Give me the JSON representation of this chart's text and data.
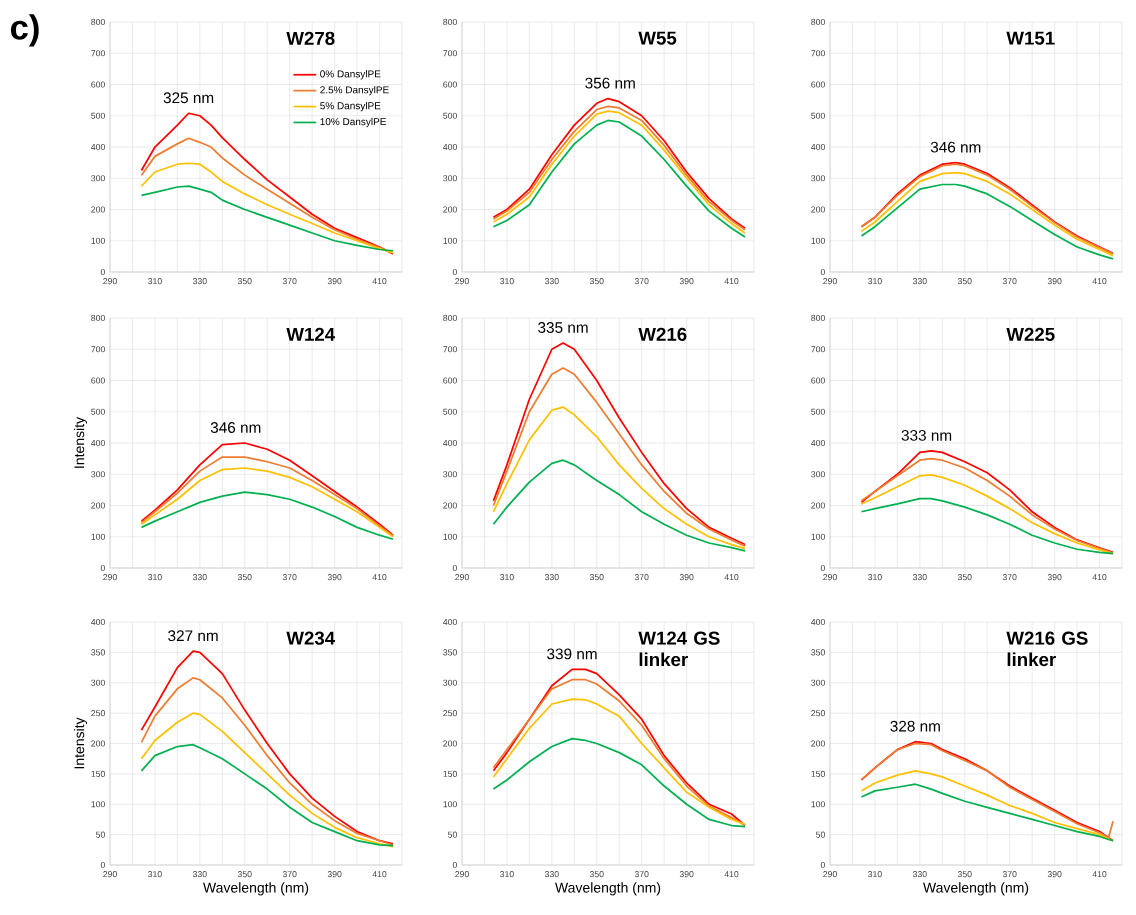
{
  "chart_data": [
    {
      "type": "line",
      "title": "W278",
      "annotations": [
        "c)",
        {
          "text": "325 nm",
          "x": 325,
          "y": 508
        }
      ],
      "legend": "top right",
      "grid": true,
      "xlim": [
        290,
        420
      ],
      "ylim": [
        0,
        800
      ],
      "xticks": [
        290,
        {
          "value": 300,
          "label": null
        },
        310,
        {
          "value": 320,
          "label": null
        },
        330,
        {
          "value": 340,
          "label": null
        },
        350,
        {
          "value": 360,
          "label": null
        },
        370,
        {
          "value": 380,
          "label": null
        },
        390,
        {
          "value": 400,
          "label": null
        },
        410,
        {
          "value": 420,
          "label": null
        }
      ],
      "yticks": [
        0,
        100,
        200,
        300,
        400,
        500,
        600,
        700,
        800
      ],
      "x": [
        304,
        310,
        320,
        325,
        330,
        335,
        340,
        350,
        360,
        370,
        380,
        390,
        400,
        410,
        416
      ],
      "series": [
        {
          "name": "0% DansylPE",
          "color": "#ff0000",
          "values": [
            325,
            400,
            470,
            508,
            500,
            470,
            430,
            360,
            295,
            240,
            185,
            140,
            110,
            80,
            58
          ]
        },
        {
          "name": "2.5% DansylPE",
          "color": "#ed7d31",
          "values": [
            310,
            370,
            410,
            428,
            415,
            400,
            365,
            310,
            265,
            220,
            175,
            135,
            105,
            78,
            60
          ]
        },
        {
          "name": "5% DansylPE",
          "color": "#ffc000",
          "values": [
            275,
            320,
            345,
            348,
            345,
            320,
            290,
            250,
            215,
            185,
            155,
            125,
            100,
            75,
            62
          ]
        },
        {
          "name": "10% DansylPE",
          "color": "#00b050",
          "values": [
            245,
            255,
            272,
            275,
            265,
            255,
            230,
            200,
            175,
            150,
            125,
            100,
            85,
            72,
            68
          ]
        }
      ]
    },
    {
      "type": "line",
      "title": "W55",
      "annotations": [
        {
          "text": "356 nm",
          "x": 356,
          "y": 555
        }
      ],
      "grid": true,
      "xlim": [
        290,
        420
      ],
      "ylim": [
        0,
        800
      ],
      "xticks": [
        290,
        {
          "value": 300,
          "label": null
        },
        310,
        {
          "value": 320,
          "label": null
        },
        330,
        {
          "value": 340,
          "label": null
        },
        350,
        {
          "value": 360,
          "label": null
        },
        370,
        {
          "value": 380,
          "label": null
        },
        390,
        {
          "value": 400,
          "label": null
        },
        410,
        {
          "value": 420,
          "label": null
        }
      ],
      "yticks": [
        0,
        100,
        200,
        300,
        400,
        500,
        600,
        700,
        800
      ],
      "x": [
        304,
        310,
        320,
        330,
        340,
        350,
        355,
        360,
        370,
        380,
        390,
        400,
        410,
        416
      ],
      "series": [
        {
          "color": "#ff0000",
          "values": [
            175,
            200,
            265,
            375,
            470,
            540,
            555,
            545,
            500,
            420,
            320,
            235,
            170,
            140
          ]
        },
        {
          "color": "#ed7d31",
          "values": [
            170,
            195,
            255,
            360,
            450,
            520,
            530,
            525,
            485,
            405,
            310,
            225,
            165,
            135
          ]
        },
        {
          "color": "#ffc000",
          "values": [
            160,
            185,
            240,
            345,
            435,
            505,
            515,
            510,
            470,
            390,
            300,
            215,
            155,
            125
          ]
        },
        {
          "color": "#00b050",
          "values": [
            145,
            165,
            215,
            320,
            410,
            470,
            485,
            480,
            435,
            360,
            275,
            195,
            140,
            112
          ]
        }
      ]
    },
    {
      "type": "line",
      "title": "W151",
      "annotations": [
        {
          "text": "346 nm",
          "x": 346,
          "y": 350
        }
      ],
      "grid": true,
      "xlim": [
        290,
        420
      ],
      "ylim": [
        0,
        800
      ],
      "xticks": [
        290,
        {
          "value": 300,
          "label": null
        },
        310,
        {
          "value": 320,
          "label": null
        },
        330,
        {
          "value": 340,
          "label": null
        },
        350,
        {
          "value": 360,
          "label": null
        },
        370,
        {
          "value": 380,
          "label": null
        },
        390,
        {
          "value": 400,
          "label": null
        },
        410,
        {
          "value": 420,
          "label": null
        }
      ],
      "yticks": [
        0,
        100,
        200,
        300,
        400,
        500,
        600,
        700,
        800
      ],
      "x": [
        304,
        310,
        320,
        330,
        340,
        346,
        350,
        360,
        370,
        380,
        390,
        400,
        410,
        416
      ],
      "series": [
        {
          "color": "#ff0000",
          "values": [
            145,
            175,
            250,
            310,
            345,
            350,
            345,
            315,
            270,
            215,
            160,
            115,
            80,
            60
          ]
        },
        {
          "color": "#ed7d31",
          "values": [
            145,
            175,
            245,
            305,
            340,
            345,
            340,
            310,
            265,
            210,
            158,
            112,
            78,
            58
          ]
        },
        {
          "color": "#ffc000",
          "values": [
            130,
            160,
            225,
            290,
            315,
            318,
            315,
            290,
            250,
            200,
            150,
            105,
            72,
            52
          ]
        },
        {
          "color": "#00b050",
          "values": [
            115,
            145,
            205,
            265,
            280,
            280,
            275,
            250,
            210,
            165,
            120,
            80,
            55,
            42
          ]
        }
      ]
    },
    {
      "type": "line",
      "title": "W124",
      "ylabel": "Intensity",
      "annotations": [
        {
          "text": "346 nm",
          "x": 346,
          "y": 400
        }
      ],
      "grid": true,
      "xlim": [
        290,
        420
      ],
      "ylim": [
        0,
        800
      ],
      "xticks": [
        290,
        {
          "value": 300,
          "label": null
        },
        310,
        {
          "value": 320,
          "label": null
        },
        330,
        {
          "value": 340,
          "label": null
        },
        350,
        {
          "value": 360,
          "label": null
        },
        370,
        {
          "value": 380,
          "label": null
        },
        390,
        {
          "value": 400,
          "label": null
        },
        410,
        {
          "value": 420,
          "label": null
        }
      ],
      "yticks": [
        0,
        100,
        200,
        300,
        400,
        500,
        600,
        700,
        800
      ],
      "x": [
        304,
        310,
        320,
        330,
        340,
        350,
        360,
        370,
        380,
        390,
        400,
        410,
        416
      ],
      "series": [
        {
          "color": "#ff0000",
          "values": [
            150,
            185,
            250,
            330,
            395,
            400,
            380,
            345,
            295,
            245,
            195,
            140,
            105
          ]
        },
        {
          "color": "#ed7d31",
          "values": [
            145,
            180,
            240,
            310,
            355,
            355,
            340,
            320,
            280,
            235,
            190,
            135,
            103
          ]
        },
        {
          "color": "#ffc000",
          "values": [
            140,
            170,
            220,
            280,
            315,
            320,
            310,
            290,
            260,
            220,
            180,
            130,
            100
          ]
        },
        {
          "color": "#00b050",
          "values": [
            130,
            150,
            180,
            210,
            230,
            243,
            235,
            220,
            195,
            165,
            130,
            105,
            92
          ]
        }
      ]
    },
    {
      "type": "line",
      "title": "W216",
      "annotations": [
        {
          "text": "335 nm",
          "x": 335,
          "y": 720
        }
      ],
      "grid": true,
      "xlim": [
        290,
        420
      ],
      "ylim": [
        0,
        800
      ],
      "xticks": [
        290,
        {
          "value": 300,
          "label": null
        },
        310,
        {
          "value": 320,
          "label": null
        },
        330,
        {
          "value": 340,
          "label": null
        },
        350,
        {
          "value": 360,
          "label": null
        },
        370,
        {
          "value": 380,
          "label": null
        },
        390,
        {
          "value": 400,
          "label": null
        },
        410,
        {
          "value": 420,
          "label": null
        }
      ],
      "yticks": [
        0,
        100,
        200,
        300,
        400,
        500,
        600,
        700,
        800
      ],
      "x": [
        304,
        310,
        320,
        330,
        335,
        340,
        350,
        360,
        370,
        380,
        390,
        400,
        410,
        416
      ],
      "series": [
        {
          "color": "#ff0000",
          "values": [
            215,
            330,
            540,
            700,
            720,
            700,
            600,
            480,
            370,
            270,
            190,
            130,
            95,
            75
          ]
        },
        {
          "color": "#ed7d31",
          "values": [
            200,
            310,
            500,
            620,
            640,
            620,
            530,
            430,
            330,
            245,
            175,
            125,
            90,
            70
          ]
        },
        {
          "color": "#ffc000",
          "values": [
            180,
            270,
            410,
            505,
            515,
            490,
            420,
            330,
            255,
            190,
            140,
            100,
            75,
            62
          ]
        },
        {
          "color": "#00b050",
          "values": [
            140,
            195,
            275,
            335,
            345,
            330,
            280,
            235,
            180,
            140,
            105,
            80,
            65,
            55
          ]
        }
      ]
    },
    {
      "type": "line",
      "title": "W225",
      "annotations": [
        {
          "text": "333 nm",
          "x": 333,
          "y": 375
        }
      ],
      "grid": true,
      "xlim": [
        290,
        420
      ],
      "ylim": [
        0,
        800
      ],
      "xticks": [
        290,
        {
          "value": 300,
          "label": null
        },
        310,
        {
          "value": 320,
          "label": null
        },
        330,
        {
          "value": 340,
          "label": null
        },
        350,
        {
          "value": 360,
          "label": null
        },
        370,
        {
          "value": 380,
          "label": null
        },
        390,
        {
          "value": 400,
          "label": null
        },
        410,
        {
          "value": 420,
          "label": null
        }
      ],
      "yticks": [
        0,
        100,
        200,
        300,
        400,
        500,
        600,
        700,
        800
      ],
      "x": [
        304,
        310,
        320,
        330,
        335,
        340,
        350,
        360,
        370,
        380,
        390,
        400,
        410,
        416
      ],
      "series": [
        {
          "color": "#ff0000",
          "values": [
            210,
            245,
            300,
            370,
            375,
            370,
            340,
            305,
            250,
            180,
            130,
            90,
            65,
            50
          ]
        },
        {
          "color": "#ed7d31",
          "values": [
            215,
            245,
            295,
            345,
            350,
            345,
            320,
            280,
            230,
            170,
            125,
            88,
            63,
            48
          ]
        },
        {
          "color": "#ffc000",
          "values": [
            205,
            225,
            260,
            295,
            298,
            290,
            265,
            230,
            190,
            145,
            110,
            80,
            58,
            46
          ]
        },
        {
          "color": "#00b050",
          "values": [
            180,
            190,
            205,
            222,
            222,
            215,
            195,
            170,
            140,
            105,
            80,
            60,
            50,
            46
          ]
        }
      ]
    },
    {
      "type": "line",
      "title": "W234",
      "xlabel": "Wavelength (nm)",
      "ylabel": "Intensity",
      "annotations": [
        {
          "text": "327 nm",
          "x": 327,
          "y": 352
        }
      ],
      "grid": true,
      "xlim": [
        290,
        420
      ],
      "ylim": [
        0,
        400
      ],
      "xticks": [
        290,
        {
          "value": 300,
          "label": null
        },
        310,
        {
          "value": 320,
          "label": null
        },
        330,
        {
          "value": 340,
          "label": null
        },
        350,
        {
          "value": 360,
          "label": null
        },
        370,
        {
          "value": 380,
          "label": null
        },
        390,
        {
          "value": 400,
          "label": null
        },
        410,
        {
          "value": 420,
          "label": null
        }
      ],
      "yticks": [
        0,
        50,
        100,
        150,
        200,
        250,
        300,
        350,
        400
      ],
      "x": [
        304,
        310,
        320,
        327,
        330,
        340,
        350,
        360,
        370,
        380,
        390,
        400,
        410,
        416
      ],
      "series": [
        {
          "color": "#ff0000",
          "values": [
            222,
            260,
            325,
            352,
            350,
            315,
            255,
            200,
            150,
            110,
            80,
            55,
            40,
            35
          ]
        },
        {
          "color": "#ed7d31",
          "values": [
            202,
            245,
            290,
            308,
            305,
            275,
            230,
            180,
            135,
            100,
            73,
            52,
            40,
            33
          ]
        },
        {
          "color": "#ffc000",
          "values": [
            175,
            205,
            235,
            250,
            248,
            220,
            185,
            150,
            115,
            85,
            62,
            45,
            35,
            30
          ]
        },
        {
          "color": "#00b050",
          "values": [
            155,
            180,
            195,
            198,
            193,
            175,
            150,
            125,
            95,
            70,
            55,
            40,
            33,
            32
          ]
        }
      ]
    },
    {
      "type": "line",
      "title": "W124 GS linker",
      "xlabel": "Wavelength (nm)",
      "annotations": [
        {
          "text": "339 nm",
          "x": 339,
          "y": 322
        }
      ],
      "grid": true,
      "xlim": [
        290,
        420
      ],
      "ylim": [
        0,
        400
      ],
      "xticks": [
        290,
        {
          "value": 300,
          "label": null
        },
        310,
        {
          "value": 320,
          "label": null
        },
        330,
        {
          "value": 340,
          "label": null
        },
        350,
        {
          "value": 360,
          "label": null
        },
        370,
        {
          "value": 380,
          "label": null
        },
        390,
        {
          "value": 400,
          "label": null
        },
        410,
        {
          "value": 420,
          "label": null
        }
      ],
      "yticks": [
        0,
        50,
        100,
        150,
        200,
        250,
        300,
        350,
        400
      ],
      "x": [
        304,
        310,
        320,
        330,
        339,
        345,
        350,
        360,
        370,
        380,
        390,
        400,
        410,
        416
      ],
      "series": [
        {
          "color": "#ff0000",
          "values": [
            155,
            185,
            240,
            295,
            322,
            322,
            315,
            280,
            240,
            180,
            135,
            100,
            84,
            65
          ]
        },
        {
          "color": "#ed7d31",
          "values": [
            160,
            190,
            240,
            290,
            305,
            305,
            298,
            270,
            230,
            175,
            130,
            97,
            78,
            65
          ]
        },
        {
          "color": "#ffc000",
          "values": [
            145,
            175,
            225,
            265,
            273,
            272,
            265,
            245,
            200,
            160,
            120,
            95,
            75,
            67
          ]
        },
        {
          "color": "#00b050",
          "values": [
            125,
            140,
            170,
            195,
            208,
            205,
            200,
            185,
            165,
            130,
            100,
            75,
            65,
            63
          ]
        }
      ]
    },
    {
      "type": "line",
      "title": "W216 GS linker",
      "xlabel": "Wavelength (nm)",
      "annotations": [
        {
          "text": "328 nm",
          "x": 328,
          "y": 203
        }
      ],
      "grid": true,
      "xlim": [
        290,
        420
      ],
      "ylim": [
        0,
        400
      ],
      "xticks": [
        290,
        {
          "value": 300,
          "label": null
        },
        310,
        {
          "value": 320,
          "label": null
        },
        330,
        {
          "value": 340,
          "label": null
        },
        350,
        {
          "value": 360,
          "label": null
        },
        370,
        {
          "value": 380,
          "label": null
        },
        390,
        {
          "value": 400,
          "label": null
        },
        410,
        {
          "value": 420,
          "label": null
        }
      ],
      "yticks": [
        0,
        50,
        100,
        150,
        200,
        250,
        300,
        350,
        400
      ],
      "x": [
        304,
        310,
        320,
        328,
        335,
        340,
        350,
        360,
        370,
        380,
        390,
        400,
        410,
        414,
        416
      ],
      "series": [
        {
          "color": "#ff0000",
          "values": [
            140,
            160,
            190,
            203,
            200,
            190,
            175,
            155,
            130,
            110,
            90,
            70,
            55,
            45,
            40
          ]
        },
        {
          "color": "#ed7d31",
          "values": [
            140,
            160,
            190,
            200,
            198,
            188,
            172,
            155,
            128,
            108,
            88,
            68,
            53,
            45,
            72
          ]
        },
        {
          "color": "#ffc000",
          "values": [
            122,
            135,
            148,
            155,
            150,
            145,
            130,
            115,
            98,
            85,
            70,
            60,
            50,
            43,
            40
          ]
        },
        {
          "color": "#00b050",
          "values": [
            112,
            122,
            128,
            133,
            125,
            118,
            105,
            95,
            85,
            75,
            65,
            55,
            47,
            42,
            40
          ]
        }
      ]
    }
  ]
}
